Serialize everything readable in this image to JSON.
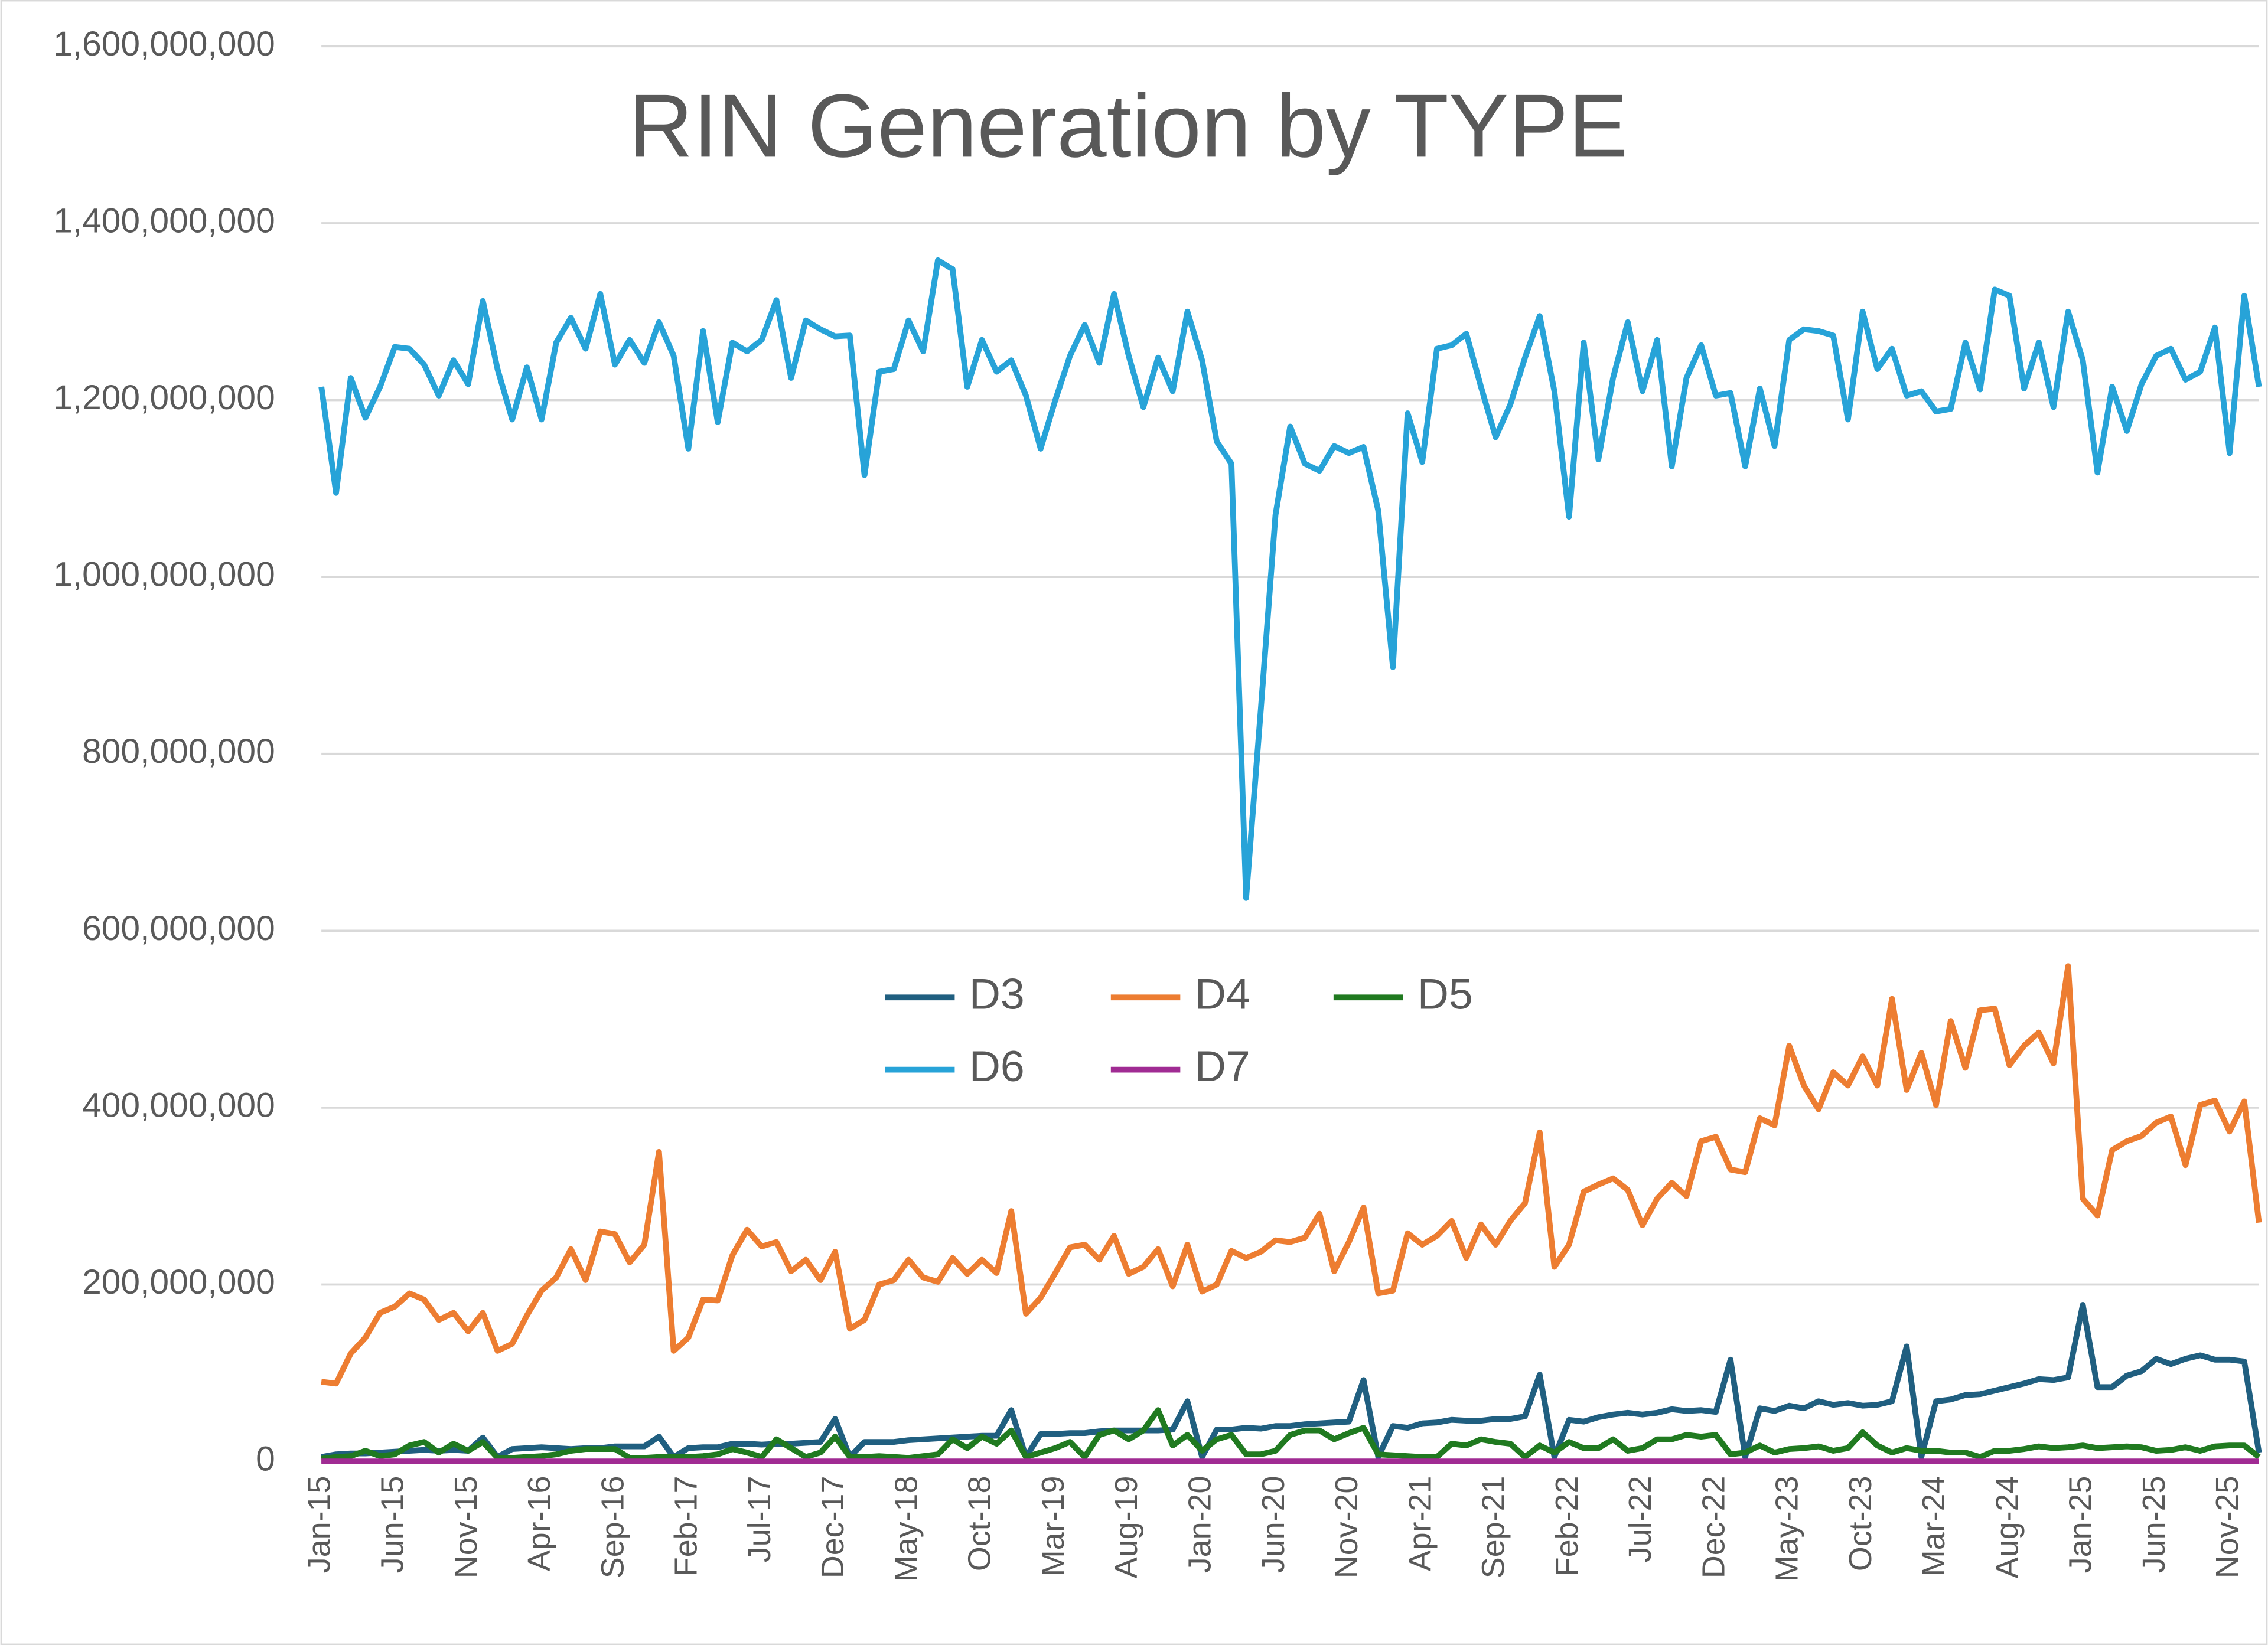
{
  "chart_data": {
    "type": "line",
    "title": "RIN Generation by TYPE",
    "categories": [
      "Jan-15",
      null,
      null,
      null,
      null,
      "Jun-15",
      null,
      null,
      null,
      null,
      "Nov-15",
      null,
      null,
      null,
      null,
      "Apr-16",
      null,
      null,
      null,
      null,
      "Sep-16",
      null,
      null,
      null,
      null,
      "Feb-17",
      null,
      null,
      null,
      null,
      "Jul-17",
      null,
      null,
      null,
      null,
      "Dec-17",
      null,
      null,
      null,
      null,
      "May-18",
      null,
      null,
      null,
      null,
      "Oct-18",
      null,
      null,
      null,
      null,
      "Mar-19",
      null,
      null,
      null,
      null,
      "Aug-19",
      null,
      null,
      null,
      null,
      "Jan-20",
      null,
      null,
      null,
      null,
      "Jun-20",
      null,
      null,
      null,
      null,
      "Nov-20",
      null,
      null,
      null,
      null,
      "Apr-21",
      null,
      null,
      null,
      null,
      "Sep-21",
      null,
      null,
      null,
      null,
      "Feb-22",
      null,
      null,
      null,
      null,
      "Jul-22",
      null,
      null,
      null,
      null,
      "Dec-22",
      null,
      null,
      null,
      null,
      "May-23",
      null,
      null,
      null,
      null,
      "Oct-23",
      null,
      null,
      null,
      null,
      "Mar-24",
      null,
      null,
      null,
      null,
      "Aug-24",
      null,
      null,
      null,
      null,
      "Jan-25",
      null,
      null,
      null,
      null,
      "Jun-25",
      null,
      null,
      null,
      null,
      "Nov-25",
      null,
      null
    ],
    "ylim": [
      0,
      1600000000
    ],
    "yticks": [
      {
        "value": 0,
        "label": "0"
      },
      {
        "value": 200000000,
        "label": "200,000,000"
      },
      {
        "value": 400000000,
        "label": "400,000,000"
      },
      {
        "value": 600000000,
        "label": "600,000,000"
      },
      {
        "value": 800000000,
        "label": "800,000,000"
      },
      {
        "value": 1000000000,
        "label": "1,000,000,000"
      },
      {
        "value": 1200000000,
        "label": "1,200,000,000"
      },
      {
        "value": 1400000000,
        "label": "1,400,000,000"
      },
      {
        "value": 1600000000,
        "label": "1,600,000,000"
      }
    ],
    "grid": true,
    "series": [
      {
        "name": "D3",
        "color": "#205f80",
        "values": [
          5000000.0,
          8000000.0,
          9000000.0,
          9000000.0,
          10000000.0,
          11000000.0,
          12000000.0,
          13000000.0,
          12000000.0,
          13000000.0,
          12000000.0,
          27000000.0,
          5000000.0,
          14000000.0,
          15000000.0,
          16000000.0,
          15000000.0,
          14000000.0,
          15000000.0,
          15000000.0,
          17000000.0,
          17000000.0,
          17000000.0,
          28000000.0,
          5000000.0,
          15000000.0,
          16000000.0,
          16000000.0,
          20000000.0,
          20000000.0,
          19000000.0,
          20000000.0,
          20000000.0,
          21000000.0,
          22000000.0,
          48000000.0,
          5000000.0,
          22000000.0,
          22000000.0,
          22000000.0,
          24000000.0,
          25000000.0,
          26000000.0,
          27000000.0,
          28000000.0,
          29000000.0,
          29000000.0,
          58000000.0,
          5000000.0,
          31000000.0,
          31000000.0,
          32000000.0,
          32000000.0,
          34000000.0,
          35000000.0,
          35000000.0,
          35000000.0,
          35000000.0,
          36000000.0,
          68000000.0,
          5000000.0,
          36000000.0,
          36000000.0,
          38000000.0,
          37000000.0,
          40000000.0,
          40000000.0,
          42000000.0,
          43000000.0,
          44000000.0,
          45000000.0,
          92000000.0,
          5000000.0,
          40000000.0,
          38000000.0,
          43000000.0,
          44000000.0,
          47000000.0,
          46000000.0,
          46000000.0,
          48000000.0,
          48000000.0,
          51000000.0,
          98000000.0,
          5000000.0,
          47000000.0,
          45000000.0,
          50000000.0,
          53000000.0,
          55000000.0,
          53000000.0,
          55000000.0,
          59000000.0,
          57000000.0,
          58000000.0,
          56000000.0,
          115000000.0,
          5000000.0,
          60000000.0,
          57000000.0,
          63000000.0,
          60000000.0,
          68000000.0,
          64000000.0,
          66000000.0,
          63000000.0,
          64000000.0,
          68000000.0,
          130000000.0,
          5000000.0,
          68000000.0,
          70000000.0,
          75000000.0,
          76000000.0,
          80000000.0,
          84000000.0,
          88000000.0,
          93000000.0,
          92000000.0,
          95000000.0,
          177000000.0,
          84000000.0,
          84000000.0,
          97000000.0,
          102000000.0,
          116000000.0,
          110000000.0,
          116000000.0,
          120000000.0,
          115000000.0,
          115000000.0,
          113000000.0,
          10000000.0
        ]
      },
      {
        "name": "D4",
        "color": "#ed7d31",
        "values": [
          90000000.0,
          88000000.0,
          122000000.0,
          140000000.0,
          168000000.0,
          175000000.0,
          190000000.0,
          183000000.0,
          160000000.0,
          168000000.0,
          147000000.0,
          168000000.0,
          125000000.0,
          133000000.0,
          165000000.0,
          193000000.0,
          208000000.0,
          240000000.0,
          205000000.0,
          260000000.0,
          257000000.0,
          225000000.0,
          245000000.0,
          350000000.0,
          125000000.0,
          140000000.0,
          183000000.0,
          182000000.0,
          233000000.0,
          262000000.0,
          243000000.0,
          248000000.0,
          215000000.0,
          228000000.0,
          205000000.0,
          237000000.0,
          150000000.0,
          160000000.0,
          200000000.0,
          205000000.0,
          228000000.0,
          208000000.0,
          203000000.0,
          230000000.0,
          212000000.0,
          228000000.0,
          213000000.0,
          283000000.0,
          167000000.0,
          185000000.0,
          213000000.0,
          242000000.0,
          245000000.0,
          228000000.0,
          255000000.0,
          212000000.0,
          220000000.0,
          240000000.0,
          198000000.0,
          245000000.0,
          192000000.0,
          200000000.0,
          238000000.0,
          230000000.0,
          237000000.0,
          250000000.0,
          248000000.0,
          253000000.0,
          280000000.0,
          215000000.0,
          248000000.0,
          287000000.0,
          190000000.0,
          193000000.0,
          258000000.0,
          245000000.0,
          255000000.0,
          272000000.0,
          230000000.0,
          268000000.0,
          245000000.0,
          272000000.0,
          292000000.0,
          372000000.0,
          220000000.0,
          245000000.0,
          305000000.0,
          313000000.0,
          320000000.0,
          307000000.0,
          267000000.0,
          297000000.0,
          315000000.0,
          300000000.0,
          362000000.0,
          367000000.0,
          330000000.0,
          327000000.0,
          388000000.0,
          380000000.0,
          470000000.0,
          425000000.0,
          398000000.0,
          440000000.0,
          425000000.0,
          458000000.0,
          425000000.0,
          523000000.0,
          420000000.0,
          462000000.0,
          403000000.0,
          498000000.0,
          445000000.0,
          510000000.0,
          512000000.0,
          448000000.0,
          470000000.0,
          485000000.0,
          450000000.0,
          560000000.0,
          297000000.0,
          278000000.0,
          352000000.0,
          362000000.0,
          368000000.0,
          383000000.0,
          390000000.0,
          335000000.0,
          403000000.0,
          408000000.0,
          373000000.0,
          407000000.0,
          270000000.0
        ]
      },
      {
        "name": "D5",
        "color": "#207a20",
        "values": [
          3000000.0,
          5000000.0,
          6000000.0,
          12000000.0,
          6000000.0,
          8000000.0,
          18000000.0,
          22000000.0,
          10000000.0,
          20000000.0,
          12000000.0,
          22000000.0,
          4000000.0,
          4000000.0,
          5000000.0,
          6000000.0,
          8000000.0,
          12000000.0,
          14000000.0,
          14000000.0,
          14000000.0,
          4000000.0,
          4000000.0,
          5000000.0,
          5000000.0,
          5000000.0,
          6000000.0,
          8000000.0,
          14000000.0,
          10000000.0,
          5000000.0,
          25000000.0,
          15000000.0,
          5000000.0,
          10000000.0,
          28000000.0,
          5000000.0,
          5000000.0,
          6000000.0,
          5000000.0,
          4000000.0,
          6000000.0,
          8000000.0,
          25000000.0,
          15000000.0,
          28000000.0,
          20000000.0,
          35000000.0,
          5000000.0,
          10000000.0,
          15000000.0,
          22000000.0,
          5000000.0,
          30000000.0,
          35000000.0,
          25000000.0,
          35000000.0,
          58000000.0,
          18000000.0,
          30000000.0,
          12000000.0,
          25000000.0,
          30000000.0,
          8000000.0,
          8000000.0,
          12000000.0,
          30000000.0,
          35000000.0,
          35000000.0,
          25000000.0,
          32000000.0,
          38000000.0,
          8000000.0,
          7000000.0,
          6000000.0,
          5000000.0,
          5000000.0,
          20000000.0,
          18000000.0,
          25000000.0,
          22000000.0,
          20000000.0,
          5000000.0,
          18000000.0,
          10000000.0,
          22000000.0,
          15000000.0,
          15000000.0,
          25000000.0,
          12000000.0,
          15000000.0,
          25000000.0,
          25000000.0,
          30000000.0,
          28000000.0,
          30000000.0,
          8000000.0,
          10000000.0,
          18000000.0,
          10000000.0,
          14000000.0,
          15000000.0,
          17000000.0,
          12000000.0,
          15000000.0,
          33000000.0,
          18000000.0,
          10000000.0,
          15000000.0,
          12000000.0,
          12000000.0,
          10000000.0,
          10000000.0,
          5000000.0,
          12000000.0,
          12000000.0,
          14000000.0,
          17000000.0,
          15000000.0,
          16000000.0,
          18000000.0,
          15000000.0,
          16000000.0,
          17000000.0,
          16000000.0,
          12000000.0,
          13000000.0,
          16000000.0,
          12000000.0,
          17000000.0,
          18000000.0,
          18000000.0,
          5000000.0
        ]
      },
      {
        "name": "D6",
        "color": "#27a3d8",
        "values": [
          1215000000.0,
          1095000000.0,
          1225000000.0,
          1180000000.0,
          1215000000.0,
          1260000000.0,
          1258000000.0,
          1240000000.0,
          1205000000.0,
          1245000000.0,
          1218000000.0,
          1312000000.0,
          1235000000.0,
          1178000000.0,
          1237000000.0,
          1178000000.0,
          1265000000.0,
          1293000000.0,
          1258000000.0,
          1320000000.0,
          1240000000.0,
          1268000000.0,
          1242000000.0,
          1288000000.0,
          1250000000.0,
          1145000000.0,
          1278000000.0,
          1175000000.0,
          1265000000.0,
          1255000000.0,
          1268000000.0,
          1313000000.0,
          1225000000.0,
          1290000000.0,
          1280000000.0,
          1272000000.0,
          1273000000.0,
          1115000000.0,
          1232000000.0,
          1235000000.0,
          1290000000.0,
          1255000000.0,
          1358000000.0,
          1348000000.0,
          1215000000.0,
          1268000000.0,
          1232000000.0,
          1245000000.0,
          1205000000.0,
          1145000000.0,
          1200000000.0,
          1250000000.0,
          1285000000.0,
          1242000000.0,
          1320000000.0,
          1250000000.0,
          1192000000.0,
          1248000000.0,
          1210000000.0,
          1300000000.0,
          1245000000.0,
          1153000000.0,
          1128000000.0,
          637000000.0,
          850000000.0,
          1070000000.0,
          1170000000.0,
          1128000000.0,
          1120000000.0,
          1148000000.0,
          1140000000.0,
          1147000000.0,
          1075000000.0,
          898000000.0,
          1185000000.0,
          1130000000.0,
          1258000000.0,
          1262000000.0,
          1275000000.0,
          1215000000.0,
          1158000000.0,
          1195000000.0,
          1248000000.0,
          1295000000.0,
          1210000000.0,
          1068000000.0,
          1265000000.0,
          1133000000.0,
          1225000000.0,
          1288000000.0,
          1210000000.0,
          1268000000.0,
          1125000000.0,
          1225000000.0,
          1262000000.0,
          1205000000.0,
          1208000000.0,
          1125000000.0,
          1213000000.0,
          1148000000.0,
          1268000000.0,
          1280000000.0,
          1278000000.0,
          1273000000.0,
          1178000000.0,
          1300000000.0,
          1235000000.0,
          1258000000.0,
          1205000000.0,
          1210000000.0,
          1187000000.0,
          1190000000.0,
          1265000000.0,
          1212000000.0,
          1325000000.0,
          1318000000.0,
          1213000000.0,
          1265000000.0,
          1192000000.0,
          1300000000.0,
          1245000000.0,
          1118000000.0,
          1215000000.0,
          1165000000.0,
          1218000000.0,
          1250000000.0,
          1258000000.0,
          1223000000.0,
          1232000000.0,
          1282000000.0,
          1140000000.0,
          1318000000.0,
          1215000000.0
        ]
      },
      {
        "name": "D7",
        "color": "#a02b93",
        "values": [
          0,
          0,
          0,
          0,
          0,
          0,
          0,
          0,
          0,
          0,
          0,
          0,
          0,
          0,
          0,
          0,
          0,
          0,
          0,
          0,
          0,
          0,
          0,
          0,
          0,
          0,
          0,
          0,
          0,
          0,
          0,
          0,
          0,
          0,
          0,
          0,
          0,
          0,
          0,
          0,
          0,
          0,
          0,
          0,
          0,
          0,
          0,
          0,
          0,
          0,
          0,
          0,
          0,
          0,
          0,
          0,
          0,
          0,
          0,
          0,
          0,
          0,
          0,
          0,
          0,
          0,
          0,
          0,
          0,
          0,
          0,
          0,
          0,
          0,
          0,
          0,
          0,
          0,
          0,
          0,
          0,
          0,
          0,
          0,
          0,
          0,
          0,
          0,
          0,
          0,
          0,
          0,
          0,
          0,
          0,
          0,
          0,
          0,
          0,
          0,
          0,
          0,
          0,
          0,
          0,
          0,
          0,
          0,
          0,
          0,
          0,
          0,
          0,
          0,
          0,
          0,
          0,
          0,
          0,
          0,
          0,
          0,
          0,
          0,
          0,
          0,
          0,
          0,
          0,
          0,
          0,
          0,
          0
        ]
      }
    ]
  }
}
